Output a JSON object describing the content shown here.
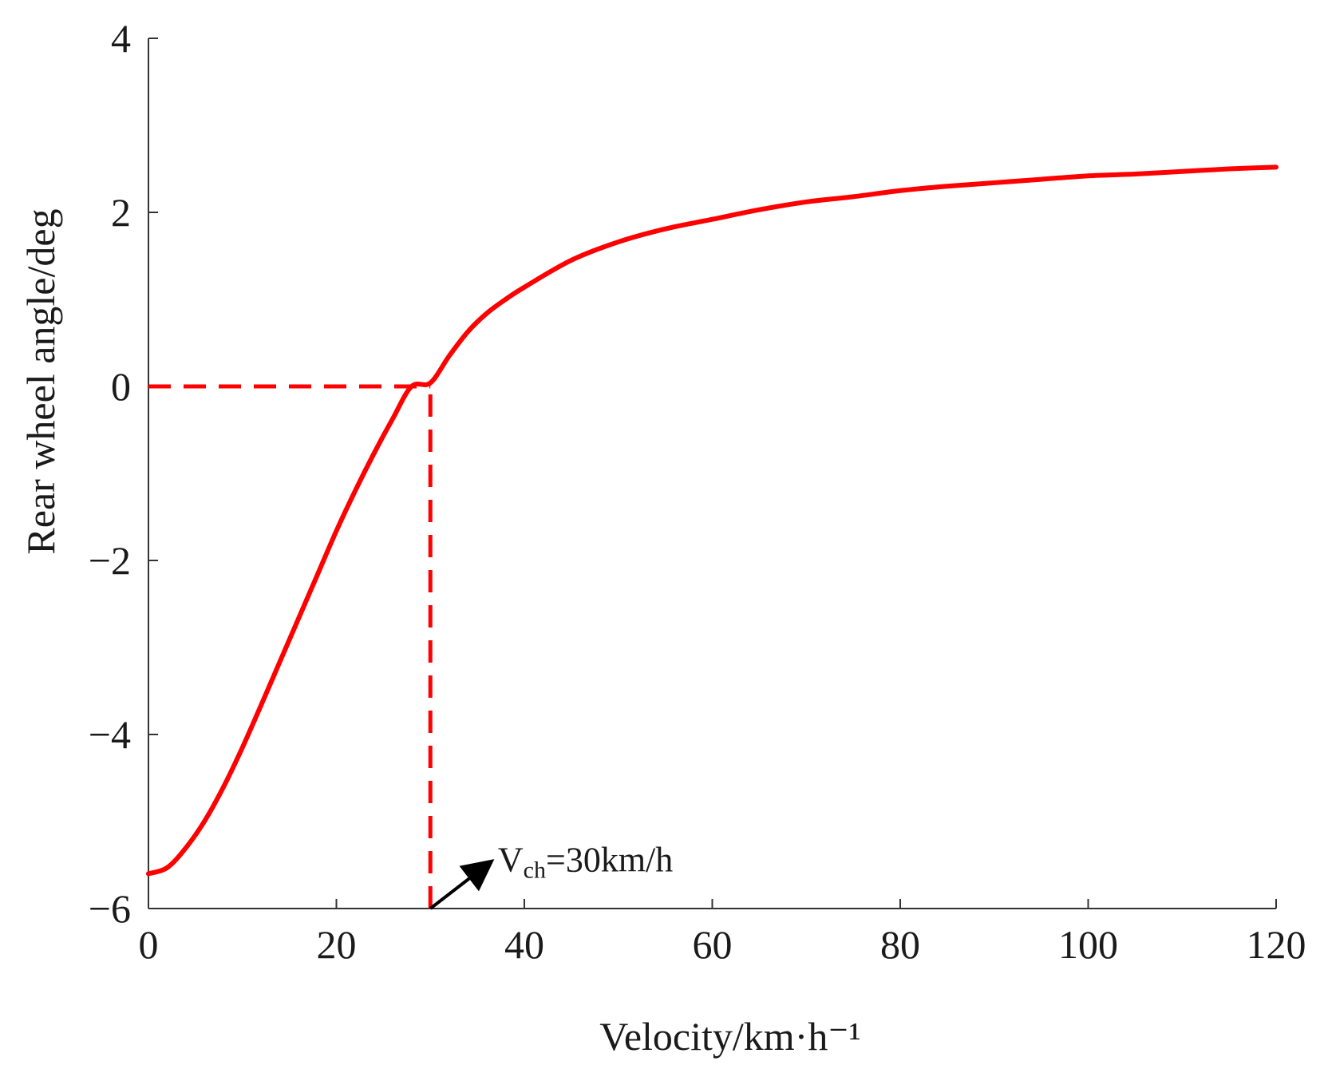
{
  "chart_data": {
    "type": "line",
    "title": "",
    "xlabel": "Velocity/km·h⁻¹",
    "ylabel": "Rear wheel angle/deg",
    "xlim": [
      0,
      120
    ],
    "ylim": [
      -6,
      4
    ],
    "x_ticks": [
      0,
      20,
      40,
      60,
      80,
      100,
      120
    ],
    "x_tick_labels": [
      "0",
      "20",
      "40",
      "60",
      "80",
      "100",
      "120"
    ],
    "y_ticks": [
      -6,
      -4,
      -2,
      0,
      2,
      4
    ],
    "y_tick_labels": [
      "−6",
      "−4",
      "−2",
      "0",
      "2",
      "4"
    ],
    "grid": false,
    "series": [
      {
        "name": "Rear wheel angle",
        "color": "#ff0000",
        "x": [
          0,
          2,
          4,
          6,
          8,
          10,
          12,
          14,
          16,
          18,
          20,
          22,
          24,
          26,
          28,
          30,
          32,
          34,
          36,
          38,
          40,
          45,
          50,
          55,
          60,
          65,
          70,
          75,
          80,
          85,
          90,
          95,
          100,
          105,
          110,
          115,
          120
        ],
        "y": [
          -5.6,
          -5.53,
          -5.3,
          -4.99,
          -4.6,
          -4.15,
          -3.66,
          -3.16,
          -2.66,
          -2.16,
          -1.66,
          -1.2,
          -0.77,
          -0.37,
          0.0,
          0.04,
          0.35,
          0.63,
          0.84,
          1.0,
          1.14,
          1.45,
          1.66,
          1.81,
          1.92,
          2.03,
          2.12,
          2.18,
          2.25,
          2.3,
          2.34,
          2.38,
          2.42,
          2.44,
          2.47,
          2.5,
          2.52
        ]
      }
    ],
    "reference_lines": [
      {
        "kind": "horizontal",
        "y": 0,
        "x_from": 0,
        "x_to": 30,
        "style": "dashed",
        "color": "#ff0000"
      },
      {
        "kind": "vertical",
        "x": 30,
        "y_from": -6,
        "y_to": 0,
        "style": "dashed",
        "color": "#ff0000"
      }
    ],
    "annotations": [
      {
        "main": "V",
        "sub": "ch",
        "rest": "=30km/h",
        "arrow_from": [
          30,
          -6
        ],
        "arrow_to": [
          36,
          -5.5
        ],
        "color": "#000000"
      }
    ]
  }
}
